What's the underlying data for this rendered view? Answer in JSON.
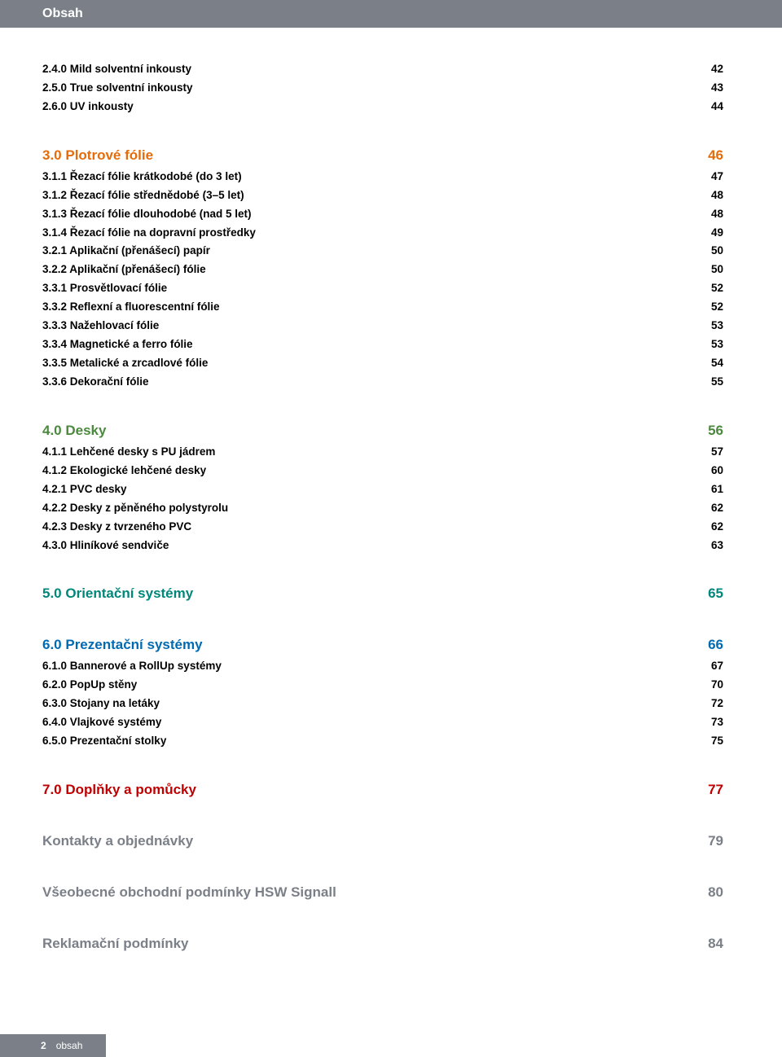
{
  "colors": {
    "header_bg": "#7b8088",
    "header_text": "#ffffff",
    "body_text": "#000000",
    "orange": "#e46c0a",
    "green": "#4b8a3e",
    "teal": "#00877b",
    "blue": "#006bb3",
    "red": "#c00000",
    "gray": "#7b8088",
    "background": "#ffffff"
  },
  "typography": {
    "heading_fontsize_pt": 17,
    "row_fontsize_pt": 13.5,
    "header_fontsize_pt": 16,
    "footer_fontsize_pt": 12,
    "row_lineheight": 1.7,
    "font_family": "Arial"
  },
  "header": {
    "title": "Obsah"
  },
  "sections": [
    {
      "heading": null,
      "items": [
        {
          "label": "2.4.0 Mild solventní inkousty",
          "page": "42",
          "num_width": 32
        },
        {
          "label": "2.5.0 True solventní inkousty",
          "page": "43",
          "num_width": 32
        },
        {
          "label": "2.6.0 UV inkousty",
          "page": "44",
          "num_width": 32
        }
      ]
    },
    {
      "heading": {
        "label": "3.0 Plotrové fólie",
        "page": "46",
        "color": "orange",
        "num_width": 32
      },
      "items": [
        {
          "label": "3.1.1 Řezací fólie krátkodobé (do 3 let)",
          "page": "47",
          "num_width": 32
        },
        {
          "label": "3.1.2 Řezací fólie střednědobé (3–5 let)",
          "page": "48",
          "num_width": 32
        },
        {
          "label": "3.1.3 Řezací fólie dlouhodobé (nad 5 let)",
          "page": "48",
          "num_width": 32
        },
        {
          "label": "3.1.4 Řezací fólie na dopravní prostředky",
          "page": "49",
          "num_width": 32
        },
        {
          "label": "3.2.1 Aplikační (přenášecí) papír",
          "page": "50",
          "num_width": 32
        },
        {
          "label": "3.2.2 Aplikační (přenášecí) fólie",
          "page": "50",
          "num_width": 32
        },
        {
          "label": "3.3.1 Prosvětlovací fólie",
          "page": "52",
          "num_width": 32
        },
        {
          "label": "3.3.2 Reflexní a fluorescentní fólie",
          "page": "52",
          "num_width": 32
        },
        {
          "label": "3.3.3 Nažehlovací fólie",
          "page": "53",
          "num_width": 32
        },
        {
          "label": "3.3.4 Magnetické a ferro fólie",
          "page": "53",
          "num_width": 32
        },
        {
          "label": "3.3.5 Metalické a zrcadlové fólie",
          "page": "54",
          "num_width": 32
        },
        {
          "label": "3.3.6 Dekorační fólie",
          "page": "55",
          "num_width": 32
        }
      ]
    },
    {
      "heading": {
        "label": "4.0 Desky",
        "page": "56",
        "color": "green",
        "num_width": 32
      },
      "items": [
        {
          "label": "4.1.1 Lehčené desky s PU jádrem",
          "page": "57",
          "num_width": 32
        },
        {
          "label": "4.1.2 Ekologické lehčené desky",
          "page": "60",
          "num_width": 32
        },
        {
          "label": "4.2.1 PVC desky",
          "page": "61",
          "num_width": 32
        },
        {
          "label": "4.2.2 Desky z pěněného polystyrolu",
          "page": "62",
          "num_width": 32
        },
        {
          "label": "4.2.3 Desky z tvrzeného PVC",
          "page": "62",
          "num_width": 32
        },
        {
          "label": "4.3.0 Hliníkové sendviče",
          "page": "63",
          "num_width": 32
        }
      ]
    },
    {
      "heading": {
        "label": "5.0 Orientační systémy",
        "page": "65",
        "color": "teal",
        "num_width": 32
      },
      "items": []
    },
    {
      "heading": {
        "label": "6.0 Prezentační systémy",
        "page": "66",
        "color": "blue",
        "num_width": 32
      },
      "items": [
        {
          "label": "6.1.0 Bannerové a RollUp systémy",
          "page": "67",
          "num_width": 32
        },
        {
          "label": "6.2.0 PopUp stěny",
          "page": "70",
          "num_width": 32
        },
        {
          "label": "6.3.0 Stojany na letáky",
          "page": "72",
          "num_width": 32
        },
        {
          "label": "6.4.0 Vlajkové systémy",
          "page": "73",
          "num_width": 32
        },
        {
          "label": "6.5.0 Prezentační stolky",
          "page": "75",
          "num_width": 32
        }
      ]
    },
    {
      "heading": {
        "label": "7.0 Doplňky a pomůcky",
        "page": "77",
        "color": "red",
        "num_width": 32
      },
      "items": []
    },
    {
      "heading": {
        "label": "Kontakty a objednávky",
        "page": "79",
        "color": "gray",
        "num_width": 32
      },
      "items": []
    },
    {
      "heading": {
        "label": "Všeobecné obchodní podmínky HSW Signall",
        "page": "80",
        "color": "gray",
        "num_width": 32
      },
      "items": []
    },
    {
      "heading": {
        "label": "Reklamační podmínky",
        "page": "84",
        "color": "gray",
        "num_width": 32
      },
      "items": []
    }
  ],
  "footer": {
    "page_number": "2",
    "label": "obsah"
  }
}
